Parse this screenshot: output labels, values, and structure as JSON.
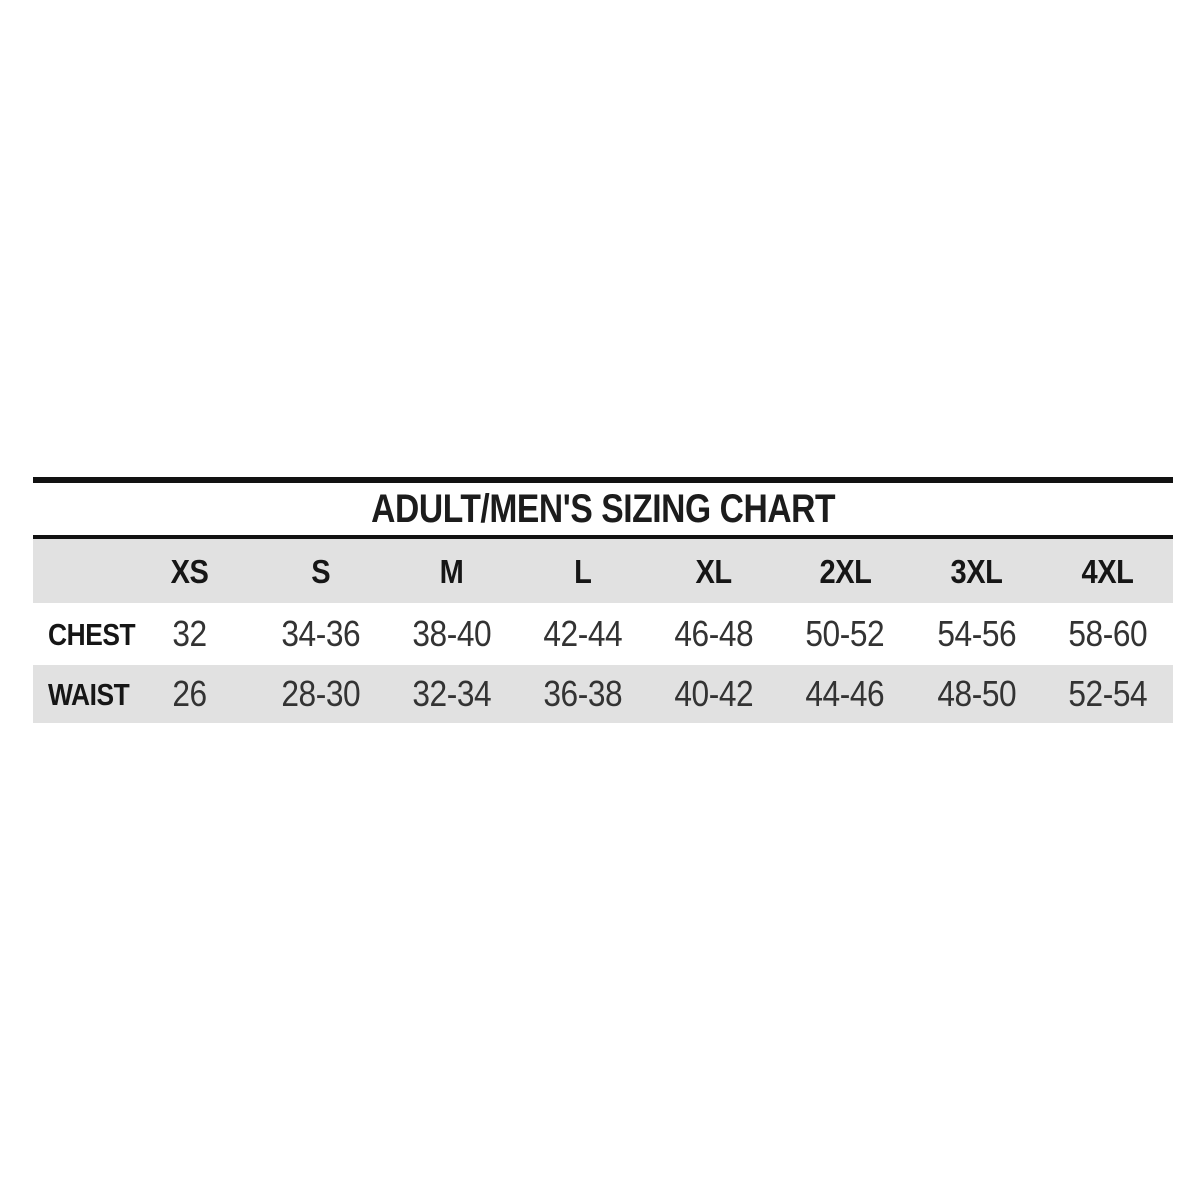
{
  "chart": {
    "title": "ADULT/MEN'S SIZING CHART",
    "columns": [
      "XS",
      "S",
      "M",
      "L",
      "XL",
      "2XL",
      "3XL",
      "4XL"
    ],
    "rows": [
      {
        "label": "CHEST",
        "values": [
          "32",
          "34-36",
          "38-40",
          "42-44",
          "46-48",
          "50-52",
          "54-56",
          "58-60"
        ]
      },
      {
        "label": "WAIST",
        "values": [
          "26",
          "28-30",
          "32-34",
          "36-38",
          "40-42",
          "44-46",
          "48-50",
          "52-54"
        ]
      }
    ],
    "colors": {
      "row_shade": "#e1e1e1",
      "rule": "#111111",
      "heading_text": "#161616",
      "value_text": "#333333",
      "background": "#ffffff"
    }
  },
  "chart_data": {
    "type": "table",
    "title": "ADULT/MEN'S SIZING CHART",
    "columns": [
      "XS",
      "S",
      "M",
      "L",
      "XL",
      "2XL",
      "3XL",
      "4XL"
    ],
    "rows": [
      {
        "label": "CHEST",
        "values": [
          "32",
          "34-36",
          "38-40",
          "42-44",
          "46-48",
          "50-52",
          "54-56",
          "58-60"
        ]
      },
      {
        "label": "WAIST",
        "values": [
          "26",
          "28-30",
          "32-34",
          "36-38",
          "40-42",
          "44-46",
          "48-50",
          "52-54"
        ]
      }
    ],
    "layout": {
      "header_row_shaded": true,
      "alternating_row_shading": true,
      "top_rule": true,
      "mid_rule": true,
      "grid_lines": false
    }
  }
}
